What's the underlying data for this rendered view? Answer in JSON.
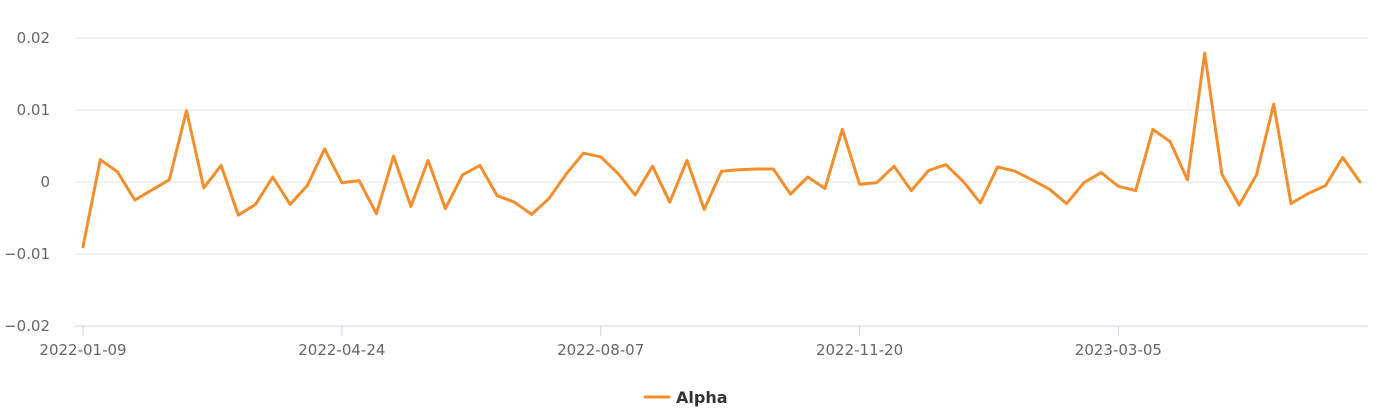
{
  "chart_data": {
    "type": "line",
    "title": "",
    "xlabel": "",
    "ylabel": "",
    "ylim": [
      -0.02,
      0.02
    ],
    "y_ticks": [
      -0.02,
      -0.01,
      0,
      0.01,
      0.02
    ],
    "y_tick_labels": [
      "−0.02",
      "−0.01",
      "0",
      "0.01",
      "0.02"
    ],
    "x_tick_labels": [
      "2022-01-09",
      "2022-04-24",
      "2022-08-07",
      "2022-11-20",
      "2023-03-05"
    ],
    "x_tick_dates": [
      "2022-01-09",
      "2022-04-24",
      "2022-08-07",
      "2022-11-20",
      "2023-03-05"
    ],
    "x_start": "2022-01-09",
    "x_step_days": 7,
    "grid": true,
    "legend_position": "bottom-center",
    "series": [
      {
        "name": "Alpha",
        "color": "#f28f2c",
        "values": [
          -0.009,
          0.0031,
          0.0014,
          -0.0025,
          -0.0011,
          0.0003,
          0.0099,
          -0.0008,
          0.0023,
          -0.0046,
          -0.0031,
          0.0007,
          -0.0031,
          -0.0005,
          0.0046,
          -0.0001,
          0.0002,
          -0.0044,
          0.0036,
          -0.0034,
          0.003,
          -0.0037,
          0.001,
          0.0023,
          -0.0019,
          -0.0028,
          -0.0045,
          -0.0023,
          0.0011,
          0.004,
          0.0035,
          0.0012,
          -0.0018,
          0.0022,
          -0.0028,
          0.003,
          -0.0038,
          0.0015,
          0.0017,
          0.0018,
          0.0018,
          -0.0017,
          0.0007,
          -0.0009,
          0.0073,
          -0.0003,
          -0.0001,
          0.0022,
          -0.0012,
          0.0016,
          0.0024,
          0.0001,
          -0.0029,
          0.0021,
          0.0015,
          0.0003,
          -0.001,
          -0.003,
          -0.0001,
          0.0013,
          -0.0006,
          -0.0012,
          0.0073,
          0.0056,
          0.0003,
          0.0179,
          0.0011,
          -0.0032,
          0.001,
          0.0108,
          -0.003,
          -0.0016,
          -0.0005,
          0.0034,
          0.0
        ]
      }
    ]
  }
}
